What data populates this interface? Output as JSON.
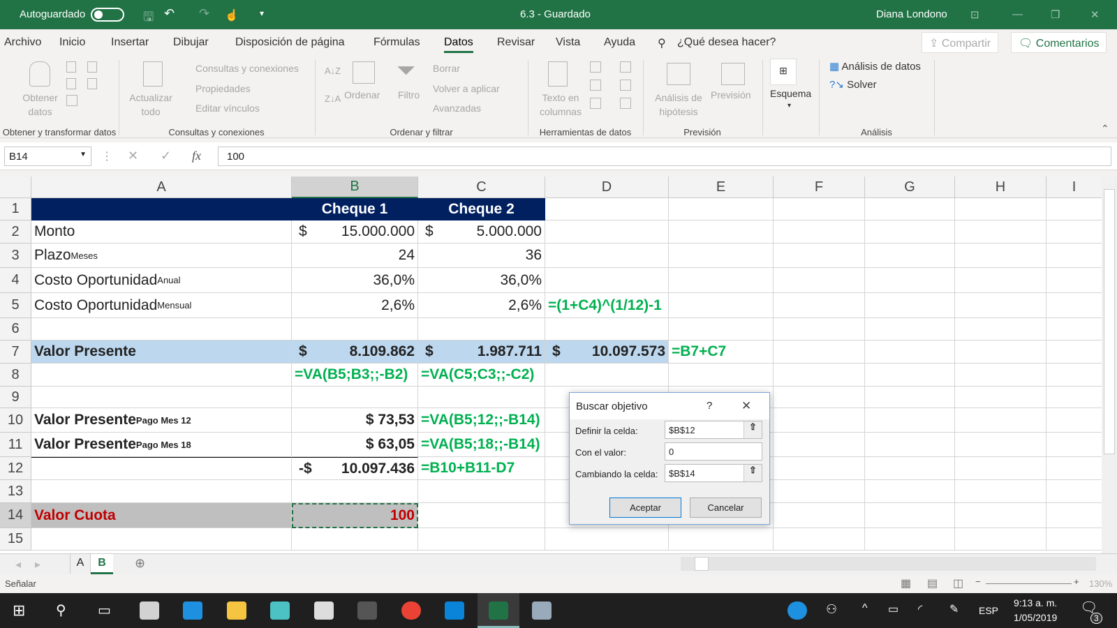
{
  "titlebar": {
    "autosave_label": "Autoguardado",
    "doc_title": "6.3  -  Guardado",
    "user": "Diana Londono"
  },
  "menu": {
    "tabs": [
      "Archivo",
      "Inicio",
      "Insertar",
      "Dibujar",
      "Disposición de página",
      "Fórmulas",
      "Datos",
      "Revisar",
      "Vista",
      "Ayuda"
    ],
    "active": "Datos",
    "search": "¿Qué desea hacer?",
    "share": "Compartir",
    "comments": "Comentarios"
  },
  "ribbon": {
    "obtener": "Obtener datos",
    "g1": "Obtener y transformar datos",
    "actualizar": "Actualizar todo",
    "consultas": "Consultas y conexiones",
    "propiedades": "Propiedades",
    "editar": "Editar vínculos",
    "g2": "Consultas y conexiones",
    "ordenar": "Ordenar",
    "filtro": "Filtro",
    "borrar": "Borrar",
    "volver": "Volver a aplicar",
    "avanzadas": "Avanzadas",
    "g3": "Ordenar y filtrar",
    "texto": "Texto en columnas",
    "g4": "Herramientas de datos",
    "hipotesis": "Análisis de hipótesis",
    "prevision": "Previsión",
    "g5": "Previsión",
    "esquema": "Esquema",
    "analisis_datos": "Análisis de datos",
    "solver": "Solver",
    "g6": "Análisis"
  },
  "formula_bar": {
    "name_box": "B14",
    "fx": "fx",
    "value": "100"
  },
  "sheet": {
    "columns": [
      "A",
      "B",
      "C",
      "D",
      "E",
      "F",
      "G",
      "H",
      "I"
    ],
    "selected_col": "B",
    "rows": [
      {
        "n": "1",
        "B": "Cheque 1",
        "C": "Cheque 2"
      },
      {
        "n": "2",
        "A": "Monto",
        "B_cur": "$",
        "B": "15.000.000",
        "C_cur": "$",
        "C": "5.000.000"
      },
      {
        "n": "3",
        "A": "Plazo",
        "A_sub": "Meses",
        "B": "24",
        "C": "36"
      },
      {
        "n": "4",
        "A": "Costo Oportunidad",
        "A_sub": "Anual",
        "B": "36,0%",
        "C": "36,0%"
      },
      {
        "n": "5",
        "A": "Costo Oportunidad",
        "A_sub": "Mensual",
        "B": "2,6%",
        "C": "2,6%",
        "D": "=(1+C4)^(1/12)-1"
      },
      {
        "n": "6"
      },
      {
        "n": "7",
        "A": "Valor Presente",
        "B_cur": "$",
        "B": "8.109.862",
        "C_cur": "$",
        "C": "1.987.711",
        "D_cur": "$",
        "D": "10.097.573",
        "E": "=B7+C7"
      },
      {
        "n": "8",
        "B": "=VA(B5;B3;;-B2)",
        "C": "=VA(C5;C3;;-C2)"
      },
      {
        "n": "9"
      },
      {
        "n": "10",
        "A": "Valor Presente",
        "A_sub": "Pago Mes 12",
        "B": "$ 73,53",
        "C": "=VA(B5;12;;-B14)"
      },
      {
        "n": "11",
        "A": "Valor Presente",
        "A_sub": "Pago Mes 18",
        "B": "$ 63,05",
        "C": "=VA(B5;18;;-B14)"
      },
      {
        "n": "12",
        "B_cur": "-$",
        "B": "10.097.436",
        "C": "=B10+B11-D7"
      },
      {
        "n": "13"
      },
      {
        "n": "14",
        "A": "Valor Cuota",
        "B": "100"
      },
      {
        "n": "15"
      }
    ]
  },
  "sheet_tabs": [
    "A",
    "B"
  ],
  "active_sheet": "B",
  "status": {
    "mode": "Señalar",
    "zoom": "130%"
  },
  "dialog": {
    "title": "Buscar objetivo",
    "help": "?",
    "set_cell_label": "Definir la celda:",
    "set_cell": "$B$12",
    "value_label": "Con el valor:",
    "value": "0",
    "changing_label": "Cambiando la celda:",
    "changing": "$B$14",
    "ok": "Aceptar",
    "cancel": "Cancelar"
  },
  "taskbar": {
    "lang": "ESP",
    "time": "9:13 a. m.",
    "date": "1/05/2019",
    "notifications": "3"
  },
  "colors": {
    "excel_green": "#217346",
    "header_navy": "#002060",
    "row7_fill": "#bdd7ee",
    "row14_fill": "#bfbfbf",
    "formula_green": "#00b050",
    "red": "#c00000"
  }
}
